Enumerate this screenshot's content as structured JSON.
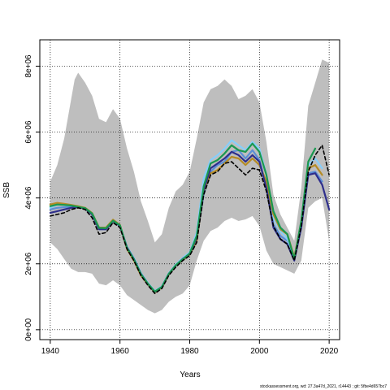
{
  "chart_data": {
    "type": "line",
    "title": "",
    "xlabel": "Years",
    "ylabel": "SSB",
    "xlim": [
      1937,
      2023
    ],
    "ylim": [
      -300000,
      8800000
    ],
    "x_ticks": [
      1940,
      1960,
      1980,
      2000,
      2020
    ],
    "x_tick_labels": [
      "1940",
      "1960",
      "1980",
      "2000",
      "2020"
    ],
    "y_ticks": [
      0,
      2000000,
      4000000,
      6000000,
      8000000
    ],
    "y_tick_labels": [
      "0e+00",
      "2e+06",
      "4e+06",
      "6e+06",
      "8e+06"
    ],
    "grid": "dotted",
    "band": {
      "color": "#bebebe",
      "x": [
        1940,
        1942,
        1944,
        1946,
        1947,
        1948,
        1950,
        1952,
        1954,
        1956,
        1958,
        1960,
        1962,
        1964,
        1966,
        1968,
        1970,
        1972,
        1974,
        1976,
        1978,
        1980,
        1982,
        1984,
        1986,
        1988,
        1990,
        1992,
        1994,
        1996,
        1998,
        2000,
        2002,
        2004,
        2006,
        2008,
        2010,
        2012,
        2014,
        2016,
        2018,
        2020
      ],
      "upper": [
        4500000,
        5000000,
        5800000,
        7000000,
        7600000,
        7800000,
        7500000,
        7100000,
        6400000,
        6300000,
        6700000,
        6400000,
        5500000,
        4800000,
        3900000,
        3300000,
        2650000,
        2900000,
        3700000,
        4200000,
        4400000,
        4800000,
        5800000,
        6900000,
        7300000,
        7400000,
        7600000,
        7400000,
        7000000,
        7100000,
        7300000,
        6900000,
        5700000,
        4100000,
        3500000,
        3100000,
        2700000,
        4300000,
        6800000,
        7500000,
        8200000,
        8100000
      ],
      "lower": [
        2650000,
        2450000,
        2150000,
        1850000,
        1800000,
        1750000,
        1750000,
        1700000,
        1400000,
        1350000,
        1500000,
        1350000,
        1050000,
        900000,
        750000,
        600000,
        500000,
        600000,
        850000,
        1000000,
        1100000,
        1350000,
        2100000,
        2700000,
        3000000,
        3100000,
        3300000,
        3400000,
        3300000,
        3350000,
        3450000,
        3150000,
        2400000,
        2000000,
        1900000,
        1800000,
        1700000,
        2100000,
        3700000,
        3900000,
        4000000,
        2700000
      ]
    },
    "x": [
      1940,
      1942,
      1944,
      1946,
      1948,
      1950,
      1952,
      1954,
      1956,
      1958,
      1960,
      1962,
      1964,
      1966,
      1968,
      1970,
      1972,
      1974,
      1976,
      1978,
      1980,
      1982,
      1984,
      1986,
      1988,
      1990,
      1992,
      1994,
      1996,
      1998,
      2000,
      2002,
      2004,
      2006,
      2008,
      2010,
      2012,
      2014,
      2016,
      2018,
      2020
    ],
    "series": [
      {
        "color": "#5b8fd6",
        "dashed": false,
        "values": [
          3650000,
          3700000,
          3720000,
          3730000,
          3720000,
          3700000,
          3500000,
          3050000,
          3050000,
          3300000,
          3150000,
          2500000,
          2150000,
          1700000,
          1400000,
          1150000,
          1300000,
          1700000,
          1950000,
          2150000,
          2300000,
          2750000,
          4100000,
          4800000,
          5000000,
          5100000,
          5400000,
          5450000,
          5200000,
          5450000,
          5150000,
          4350000,
          3200000,
          2850000,
          2700000,
          2150000,
          3200000,
          4750000,
          4800000,
          4500000,
          null
        ]
      },
      {
        "color": "#87cefa",
        "dashed": false,
        "values": [
          3700000,
          3800000,
          3790000,
          3770000,
          3730000,
          3680000,
          3520000,
          3080000,
          3070000,
          3320000,
          3160000,
          2520000,
          2180000,
          1730000,
          1420000,
          1180000,
          1320000,
          1720000,
          1980000,
          2180000,
          2350000,
          2950000,
          4600000,
          5150000,
          5300000,
          5500000,
          5750000,
          5600000,
          5450000,
          5700000,
          5500000,
          4700000,
          3400000,
          3000000,
          2750000,
          2150000,
          3250000,
          5000000,
          5200000,
          4900000,
          null
        ]
      },
      {
        "color": "#b58b25",
        "dashed": false,
        "values": [
          3800000,
          3850000,
          3820000,
          3790000,
          3750000,
          3700000,
          3540000,
          3100000,
          3100000,
          3340000,
          3180000,
          2450000,
          2100000,
          1650000,
          1380000,
          1130000,
          1280000,
          1680000,
          1950000,
          2120000,
          2280000,
          2700000,
          4200000,
          4750000,
          4850000,
          5050000,
          5250000,
          5200000,
          5000000,
          5200000,
          5000000,
          4500000,
          3500000,
          3050000,
          2900000,
          2200000,
          3250000,
          4900000,
          5000000,
          4700000,
          null
        ]
      },
      {
        "color": "#2e2e8c",
        "dashed": false,
        "values": [
          3550000,
          3600000,
          3650000,
          3700000,
          3720000,
          3680000,
          3500000,
          3050000,
          3050000,
          3300000,
          3150000,
          2500000,
          2150000,
          1700000,
          1400000,
          1150000,
          1300000,
          1700000,
          1950000,
          2150000,
          2300000,
          2800000,
          4250000,
          4900000,
          5050000,
          5200000,
          5400000,
          5300000,
          5100000,
          5300000,
          5100000,
          4300000,
          3100000,
          2750000,
          2600000,
          2100000,
          3100000,
          4700000,
          4750000,
          4400000,
          3650000
        ]
      },
      {
        "color": "#1a9850",
        "dashed": false,
        "values": [
          3750000,
          3800000,
          3790000,
          3770000,
          3730000,
          3690000,
          3530000,
          3090000,
          3080000,
          3310000,
          3170000,
          2480000,
          2140000,
          1690000,
          1400000,
          1160000,
          1300000,
          1700000,
          1960000,
          2140000,
          2320000,
          2850000,
          4350000,
          5050000,
          5150000,
          5350000,
          5600000,
          5450000,
          5400000,
          5650000,
          5400000,
          4700000,
          3600000,
          3100000,
          2900000,
          2150000,
          3300000,
          5100000,
          5500000,
          null,
          null
        ]
      },
      {
        "color": "#000000",
        "dashed": true,
        "values": [
          3450000,
          3500000,
          3550000,
          3650000,
          3700000,
          3650000,
          3400000,
          2900000,
          2950000,
          3250000,
          3100000,
          2450000,
          2100000,
          1650000,
          1350000,
          1100000,
          1250000,
          1650000,
          1900000,
          2100000,
          2250000,
          2650000,
          4100000,
          4700000,
          4800000,
          5050000,
          5100000,
          4900000,
          4700000,
          4900000,
          4850000,
          4200000,
          3150000,
          2750000,
          2600000,
          2100000,
          3150000,
          4800000,
          5300000,
          5600000,
          4700000
        ]
      }
    ]
  },
  "footnote": "stockassessment.org, wd: 27.3a47d_2021, r14443 ; git: 5fbe4d657bc7"
}
